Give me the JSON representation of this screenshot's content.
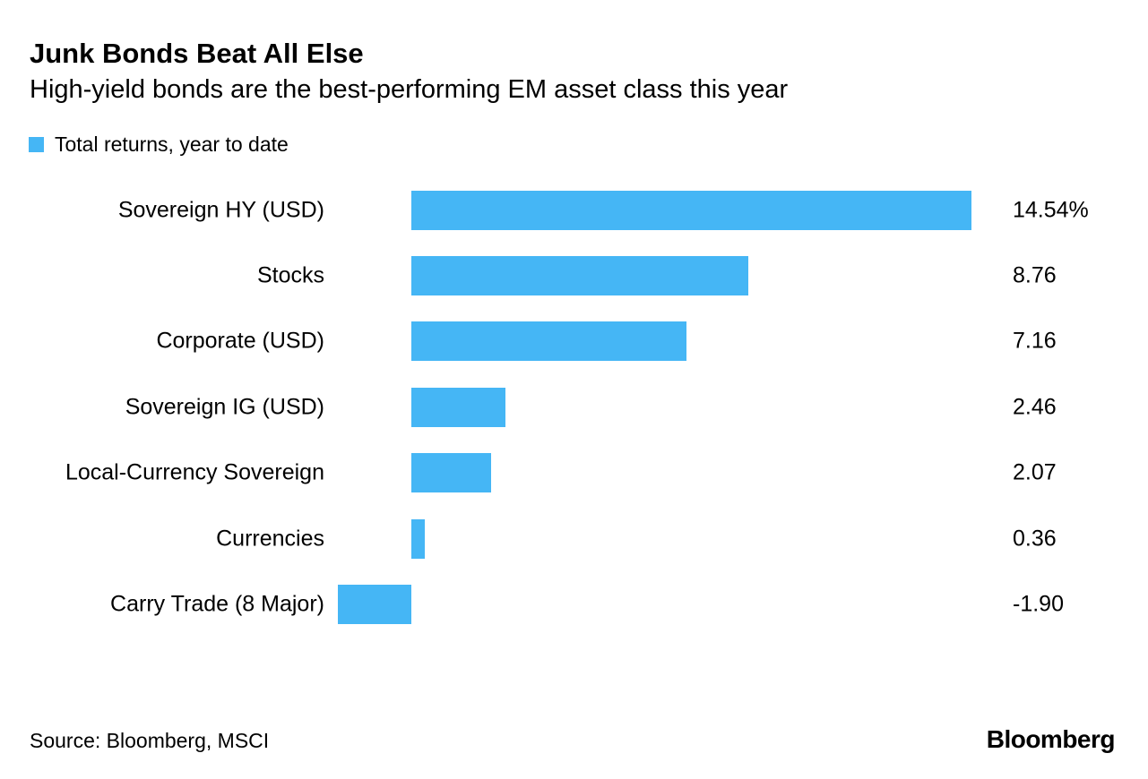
{
  "colors": {
    "bar_blue": "#45b6f5",
    "text": "#000000",
    "background": "#ffffff"
  },
  "header": {
    "title": "Junk Bonds Beat All Else",
    "subtitle": "High-yield bonds are the best-performing EM asset class this year"
  },
  "legend": {
    "label": "Total returns, year to date"
  },
  "chart_data": {
    "type": "bar",
    "orientation": "horizontal",
    "title": "Junk Bonds Beat All Else",
    "subtitle": "High-yield bonds are the best-performing EM asset class this year",
    "legend_entries": [
      "Total returns, year to date"
    ],
    "categories": [
      "Sovereign HY (USD)",
      "Stocks",
      "Corporate (USD)",
      "Sovereign IG (USD)",
      "Local-Currency Sovereign",
      "Currencies",
      "Carry Trade (8 Major)"
    ],
    "values": [
      14.54,
      8.76,
      7.16,
      2.46,
      2.07,
      0.36,
      -1.9
    ],
    "value_labels": [
      "14.54%",
      "8.76",
      "7.16",
      "2.46",
      "2.07",
      "0.36",
      "-1.90"
    ],
    "unit": "percent",
    "xlim": [
      -1.9,
      14.54
    ],
    "grid": false,
    "legend_position": "top-left",
    "bar_color": "#45b6f5"
  },
  "footer": {
    "source": "Source: Bloomberg, MSCI",
    "logo_text": "Bloomberg"
  }
}
